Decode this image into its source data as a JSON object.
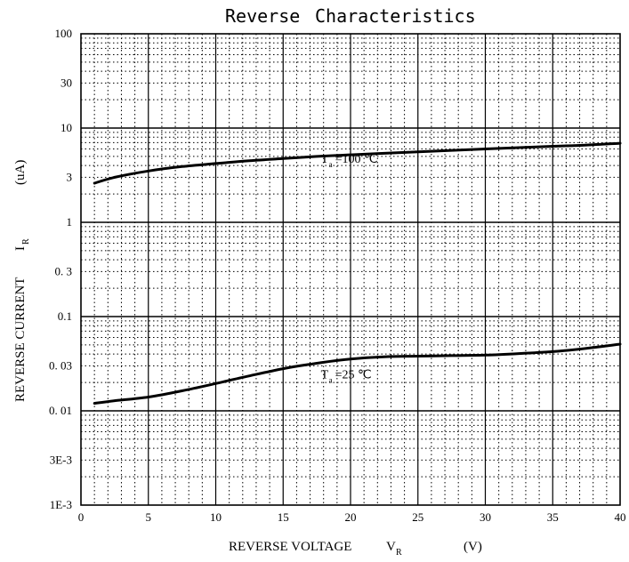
{
  "chart_data": {
    "type": "line",
    "title_part1": "Reverse",
    "title_part2": "Characteristics",
    "xlabel": "REVERSE VOLTAGE",
    "xlabel_symbol": "V",
    "xlabel_subscript": "R",
    "xlabel_unit": "(V)",
    "ylabel": "REVERSE CURRENT",
    "ylabel_symbol": "I",
    "ylabel_subscript": "R",
    "ylabel_unit": "(uA)",
    "xlim": [
      0,
      40
    ],
    "ylim": [
      0.001,
      100
    ],
    "yscale": "log",
    "grid": true,
    "x_ticks": [
      {
        "value": 0,
        "label": "0"
      },
      {
        "value": 5,
        "label": "5"
      },
      {
        "value": 10,
        "label": "10"
      },
      {
        "value": 15,
        "label": "15"
      },
      {
        "value": 20,
        "label": "20"
      },
      {
        "value": 25,
        "label": "25"
      },
      {
        "value": 30,
        "label": "30"
      },
      {
        "value": 35,
        "label": "35"
      },
      {
        "value": 40,
        "label": "40"
      }
    ],
    "y_ticks": [
      {
        "value": 100,
        "label": "100"
      },
      {
        "value": 30,
        "label": "30"
      },
      {
        "value": 10,
        "label": "10"
      },
      {
        "value": 3,
        "label": "3"
      },
      {
        "value": 1,
        "label": "1"
      },
      {
        "value": 0.3,
        "label": "0. 3"
      },
      {
        "value": 0.1,
        "label": "0.1"
      },
      {
        "value": 0.03,
        "label": "0. 03"
      },
      {
        "value": 0.01,
        "label": "0. 01"
      },
      {
        "value": 0.003,
        "label": "3E-3"
      },
      {
        "value": 0.001,
        "label": "1E-3"
      }
    ],
    "series": [
      {
        "annotation_symbol": "T",
        "annotation_subscript": "a",
        "annotation_value": "=100 ℃",
        "annotation_at": [
          17.8,
          4.3
        ],
        "points": [
          [
            1,
            2.6
          ],
          [
            2.5,
            3.0
          ],
          [
            5,
            3.5
          ],
          [
            7.5,
            3.9
          ],
          [
            10,
            4.2
          ],
          [
            12.5,
            4.5
          ],
          [
            15,
            4.75
          ],
          [
            17.5,
            5.0
          ],
          [
            20,
            5.2
          ],
          [
            22.5,
            5.4
          ],
          [
            25,
            5.6
          ],
          [
            27.5,
            5.8
          ],
          [
            30,
            6.0
          ],
          [
            32.5,
            6.2
          ],
          [
            35,
            6.4
          ],
          [
            37.5,
            6.6
          ],
          [
            40,
            6.9
          ]
        ]
      },
      {
        "annotation_symbol": "T",
        "annotation_subscript": "a",
        "annotation_value": "=25 ℃",
        "annotation_at": [
          17.8,
          0.022
        ],
        "points": [
          [
            1,
            0.012
          ],
          [
            2.5,
            0.0128
          ],
          [
            5,
            0.014
          ],
          [
            7.5,
            0.0163
          ],
          [
            10,
            0.0195
          ],
          [
            12.5,
            0.0235
          ],
          [
            15,
            0.028
          ],
          [
            17.5,
            0.032
          ],
          [
            20,
            0.0355
          ],
          [
            22.5,
            0.0375
          ],
          [
            25,
            0.038
          ],
          [
            27.5,
            0.0385
          ],
          [
            30,
            0.039
          ],
          [
            32.5,
            0.0405
          ],
          [
            35,
            0.0425
          ],
          [
            37.5,
            0.046
          ],
          [
            40,
            0.051
          ]
        ]
      }
    ]
  }
}
